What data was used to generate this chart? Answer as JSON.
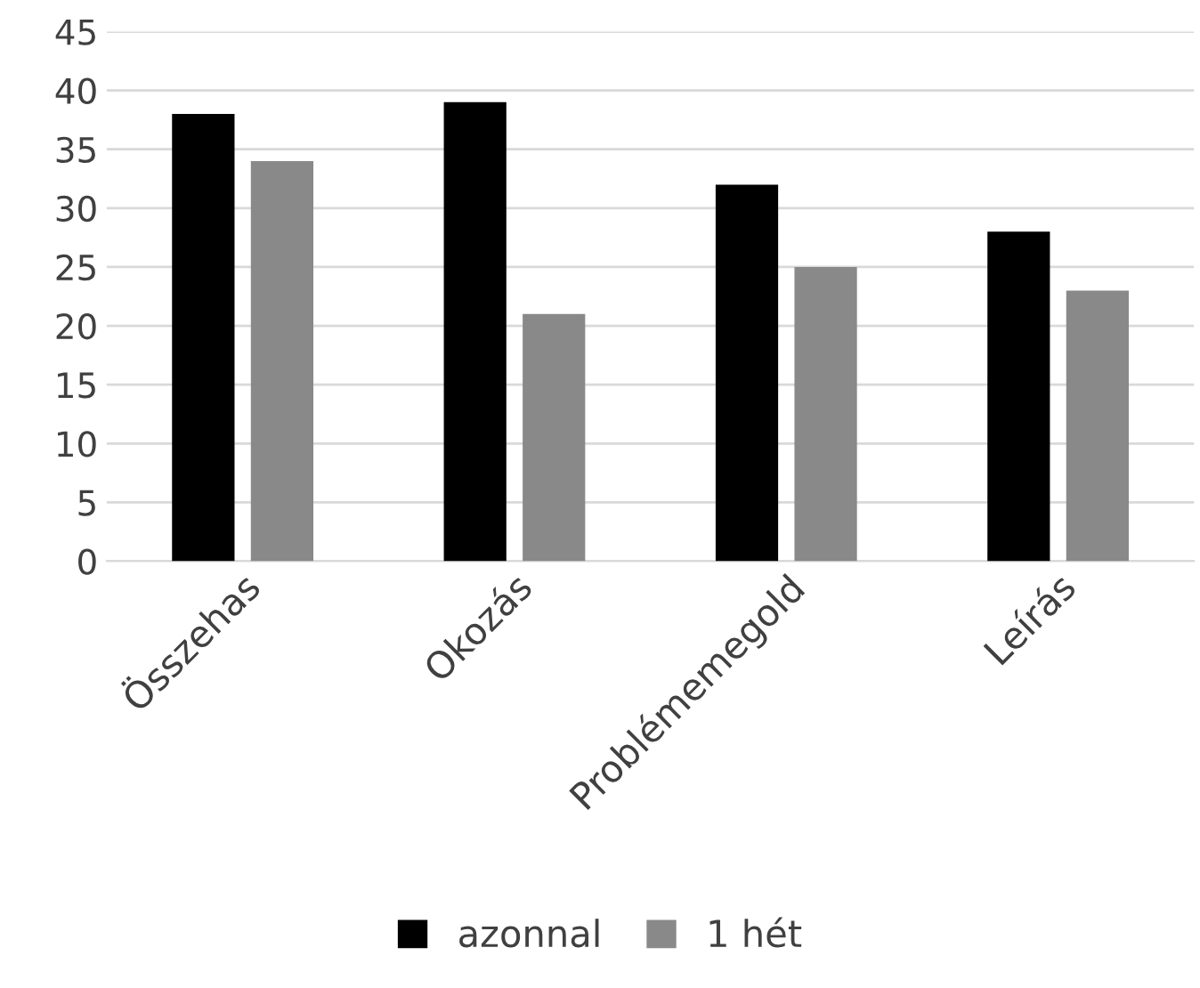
{
  "chart_data": {
    "type": "bar",
    "categories": [
      "Összehas",
      "Okozás",
      "Problémemegold",
      "Leírás"
    ],
    "series": [
      {
        "name": "azonnal",
        "color": "#000000",
        "values": [
          38,
          39,
          32,
          28
        ]
      },
      {
        "name": "1 hét",
        "color": "#898989",
        "values": [
          34,
          21,
          25,
          23
        ]
      }
    ],
    "ylim": [
      0,
      45
    ],
    "yticks": [
      0,
      5,
      10,
      15,
      20,
      25,
      30,
      35,
      40,
      45
    ],
    "grid": "y",
    "legend": "bottom"
  }
}
